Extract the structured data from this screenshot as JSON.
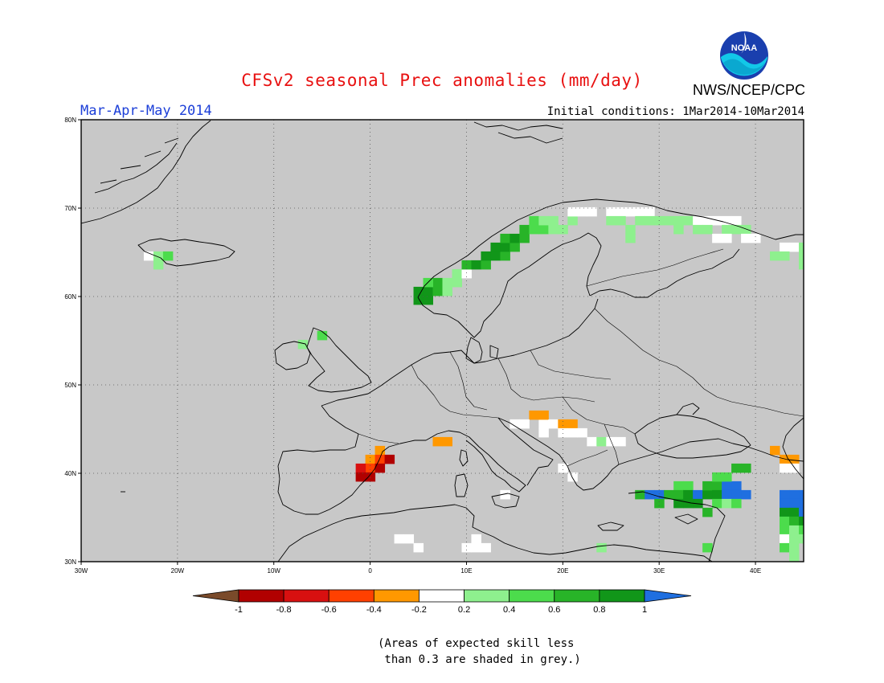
{
  "title": "CFSv2 seasonal Prec anomalies (mm/day)",
  "organization": "NWS/NCEP/CPC",
  "logo_text": "NOAA",
  "season": "Mar-Apr-May 2014",
  "initial_conditions": "Initial conditions: 1Mar2014-10Mar2014",
  "note_line1": "(Areas of expected skill less",
  "note_line2": " than 0.3 are shaded in grey.)",
  "map": {
    "lon_range": [
      -30,
      45
    ],
    "lat_range": [
      30,
      80
    ],
    "grey_mask_color": "#c8c8c8",
    "lat_labels": [
      "80N",
      "70N",
      "60N",
      "50N",
      "40N",
      "30N"
    ],
    "lon_labels": [
      "30W",
      "20W",
      "10W",
      "0",
      "10E",
      "20E",
      "30E",
      "40E"
    ]
  },
  "legend": {
    "labels": [
      "-1",
      "-0.8",
      "-0.6",
      "-0.4",
      "-0.2",
      "0.2",
      "0.4",
      "0.6",
      "0.8",
      "1"
    ],
    "colors": [
      "#7a4a2a",
      "#b10000",
      "#d81010",
      "#ff4000",
      "#ff9800",
      "#ffffff",
      "#8ef08e",
      "#4cdc4c",
      "#28b428",
      "#119619",
      "#1f6fe0"
    ]
  },
  "chart_data": {
    "type": "heatmap",
    "variable": "Precipitation anomaly",
    "units": "mm/day",
    "levels": [
      -1,
      -0.8,
      -0.6,
      -0.4,
      -0.2,
      0.2,
      0.4,
      0.6,
      0.8,
      1
    ],
    "regions": [
      {
        "area": "Norway west coast",
        "value_range": [
          0.6,
          1.0
        ]
      },
      {
        "area": "Northern Scandinavia",
        "value_range": [
          0.2,
          0.6
        ]
      },
      {
        "area": "Kola / NW Russia",
        "value_range": [
          -0.2,
          0.4
        ]
      },
      {
        "area": "Iceland",
        "value_range": [
          0.2,
          0.4
        ]
      },
      {
        "area": "Ireland / Scotland",
        "value_range": [
          0.2,
          0.6
        ]
      },
      {
        "area": "NE Spain",
        "value_range": [
          -1.0,
          -0.4
        ]
      },
      {
        "area": "Balkans",
        "value_range": [
          -0.4,
          -0.2
        ]
      },
      {
        "area": "Turkey / E Mediterranean",
        "value_range": [
          0.4,
          1.0
        ]
      },
      {
        "area": "Caucasus / Caspian",
        "value_range": [
          0.2,
          1.0
        ]
      }
    ]
  },
  "cells": [
    {
      "lon": -23,
      "lat": 64.6,
      "v": -0.1
    },
    {
      "lon": -22,
      "lat": 64.6,
      "v": 0.3
    },
    {
      "lon": -21,
      "lat": 64.6,
      "v": 0.5
    },
    {
      "lon": -22,
      "lat": 63.6,
      "v": 0.3
    },
    {
      "lon": -7,
      "lat": 54.6,
      "v": 0.3
    },
    {
      "lon": -5,
      "lat": 55.6,
      "v": 0.5
    },
    {
      "lon": 5,
      "lat": 60.6,
      "v": 0.9
    },
    {
      "lon": 6,
      "lat": 60.6,
      "v": 0.9
    },
    {
      "lon": 5,
      "lat": 59.6,
      "v": 0.9
    },
    {
      "lon": 6,
      "lat": 59.6,
      "v": 0.9
    },
    {
      "lon": 7,
      "lat": 60.6,
      "v": 0.7
    },
    {
      "lon": 7,
      "lat": 61.6,
      "v": 0.7
    },
    {
      "lon": 6,
      "lat": 61.6,
      "v": 0.5
    },
    {
      "lon": 8,
      "lat": 61.6,
      "v": 0.3
    },
    {
      "lon": 8,
      "lat": 60.6,
      "v": 0.3
    },
    {
      "lon": 9,
      "lat": 61.6,
      "v": 0.3
    },
    {
      "lon": 9,
      "lat": 62.6,
      "v": 0.3
    },
    {
      "lon": 10,
      "lat": 62.6,
      "v": -0.1
    },
    {
      "lon": 10,
      "lat": 63.6,
      "v": 0.7
    },
    {
      "lon": 11,
      "lat": 63.6,
      "v": 0.9
    },
    {
      "lon": 12,
      "lat": 63.6,
      "v": 0.7
    },
    {
      "lon": 12,
      "lat": 64.6,
      "v": 0.9
    },
    {
      "lon": 13,
      "lat": 64.6,
      "v": 0.9
    },
    {
      "lon": 14,
      "lat": 64.6,
      "v": 0.7
    },
    {
      "lon": 13,
      "lat": 65.6,
      "v": 0.9
    },
    {
      "lon": 14,
      "lat": 65.6,
      "v": 0.9
    },
    {
      "lon": 15,
      "lat": 65.6,
      "v": 0.7
    },
    {
      "lon": 14,
      "lat": 66.6,
      "v": 0.7
    },
    {
      "lon": 15,
      "lat": 66.6,
      "v": 0.9
    },
    {
      "lon": 16,
      "lat": 66.6,
      "v": 0.7
    },
    {
      "lon": 16,
      "lat": 67.6,
      "v": 0.7
    },
    {
      "lon": 17,
      "lat": 67.6,
      "v": 0.5
    },
    {
      "lon": 18,
      "lat": 67.6,
      "v": 0.5
    },
    {
      "lon": 19,
      "lat": 67.6,
      "v": 0.3
    },
    {
      "lon": 20,
      "lat": 67.6,
      "v": 0.3
    },
    {
      "lon": 17,
      "lat": 68.6,
      "v": 0.5
    },
    {
      "lon": 18,
      "lat": 68.6,
      "v": 0.3
    },
    {
      "lon": 19,
      "lat": 68.6,
      "v": 0.3
    },
    {
      "lon": 21,
      "lat": 68.6,
      "v": 0.3
    },
    {
      "lon": 21,
      "lat": 69.6,
      "v": -0.1
    },
    {
      "lon": 22,
      "lat": 69.6,
      "v": -0.1
    },
    {
      "lon": 23,
      "lat": 69.6,
      "v": -0.1
    },
    {
      "lon": 25,
      "lat": 69.6,
      "v": -0.1
    },
    {
      "lon": 26,
      "lat": 69.6,
      "v": -0.1
    },
    {
      "lon": 27,
      "lat": 69.6,
      "v": -0.1
    },
    {
      "lon": 28,
      "lat": 69.6,
      "v": -0.1
    },
    {
      "lon": 29,
      "lat": 69.6,
      "v": -0.1
    },
    {
      "lon": 25,
      "lat": 68.6,
      "v": 0.3
    },
    {
      "lon": 26,
      "lat": 68.6,
      "v": 0.3
    },
    {
      "lon": 28,
      "lat": 68.6,
      "v": 0.3
    },
    {
      "lon": 29,
      "lat": 68.6,
      "v": 0.3
    },
    {
      "lon": 30,
      "lat": 68.6,
      "v": 0.3
    },
    {
      "lon": 27,
      "lat": 66.6,
      "v": 0.3
    },
    {
      "lon": 27,
      "lat": 67.6,
      "v": 0.3
    },
    {
      "lon": 31,
      "lat": 68.6,
      "v": 0.3
    },
    {
      "lon": 32,
      "lat": 68.6,
      "v": 0.3
    },
    {
      "lon": 33,
      "lat": 68.6,
      "v": 0.3
    },
    {
      "lon": 32,
      "lat": 67.6,
      "v": 0.3
    },
    {
      "lon": 34,
      "lat": 68.6,
      "v": -0.1
    },
    {
      "lon": 35,
      "lat": 68.6,
      "v": -0.1
    },
    {
      "lon": 36,
      "lat": 68.6,
      "v": -0.1
    },
    {
      "lon": 37,
      "lat": 68.6,
      "v": -0.1
    },
    {
      "lon": 38,
      "lat": 68.6,
      "v": -0.1
    },
    {
      "lon": 34,
      "lat": 67.6,
      "v": 0.3
    },
    {
      "lon": 35,
      "lat": 67.6,
      "v": 0.3
    },
    {
      "lon": 37,
      "lat": 67.6,
      "v": 0.3
    },
    {
      "lon": 38,
      "lat": 67.6,
      "v": 0.3
    },
    {
      "lon": 39,
      "lat": 67.6,
      "v": 0.3
    },
    {
      "lon": 36,
      "lat": 66.6,
      "v": -0.1
    },
    {
      "lon": 37,
      "lat": 66.6,
      "v": -0.1
    },
    {
      "lon": 39,
      "lat": 66.6,
      "v": -0.1
    },
    {
      "lon": 40,
      "lat": 66.6,
      "v": -0.1
    },
    {
      "lon": 43,
      "lat": 65.6,
      "v": -0.1
    },
    {
      "lon": 44,
      "lat": 65.6,
      "v": -0.1
    },
    {
      "lon": 45,
      "lat": 65.6,
      "v": 0.3
    },
    {
      "lon": 42,
      "lat": 64.6,
      "v": 0.3
    },
    {
      "lon": 43,
      "lat": 64.6,
      "v": 0.3
    },
    {
      "lon": 45,
      "lat": 64.6,
      "v": 0.3
    },
    {
      "lon": 45,
      "lat": 63.6,
      "v": 0.3
    },
    {
      "lon": 18,
      "lat": 45.6,
      "v": -0.1
    },
    {
      "lon": 18,
      "lat": 44.6,
      "v": -0.1
    },
    {
      "lon": 17,
      "lat": 46.6,
      "v": -0.3
    },
    {
      "lon": 18,
      "lat": 46.6,
      "v": -0.3
    },
    {
      "lon": 19,
      "lat": 45.6,
      "v": -0.1
    },
    {
      "lon": 20,
      "lat": 45.6,
      "v": -0.3
    },
    {
      "lon": 21,
      "lat": 45.6,
      "v": -0.3
    },
    {
      "lon": 20,
      "lat": 44.6,
      "v": -0.1
    },
    {
      "lon": 21,
      "lat": 44.6,
      "v": -0.1
    },
    {
      "lon": 22,
      "lat": 44.6,
      "v": -0.1
    },
    {
      "lon": 23,
      "lat": 43.6,
      "v": -0.1
    },
    {
      "lon": 24,
      "lat": 43.6,
      "v": 0.3
    },
    {
      "lon": 25,
      "lat": 43.6,
      "v": -0.1
    },
    {
      "lon": 26,
      "lat": 43.6,
      "v": -0.1
    },
    {
      "lon": 15,
      "lat": 45.6,
      "v": -0.1
    },
    {
      "lon": 16,
      "lat": 45.6,
      "v": -0.1
    },
    {
      "lon": 7,
      "lat": 43.6,
      "v": -0.3
    },
    {
      "lon": 8,
      "lat": 43.6,
      "v": -0.3
    },
    {
      "lon": 1,
      "lat": 42.6,
      "v": -0.3
    },
    {
      "lon": 0,
      "lat": 41.6,
      "v": -0.3
    },
    {
      "lon": 1,
      "lat": 41.6,
      "v": -0.5
    },
    {
      "lon": 2,
      "lat": 41.6,
      "v": -0.9
    },
    {
      "lon": 0,
      "lat": 40.6,
      "v": -0.5
    },
    {
      "lon": -1,
      "lat": 40.6,
      "v": -0.7
    },
    {
      "lon": 0,
      "lat": 39.6,
      "v": -0.9
    },
    {
      "lon": -1,
      "lat": 39.6,
      "v": -0.9
    },
    {
      "lon": 1,
      "lat": 40.6,
      "v": -0.9
    },
    {
      "lon": 20,
      "lat": 40.6,
      "v": -0.1
    },
    {
      "lon": 21,
      "lat": 39.6,
      "v": -0.1
    },
    {
      "lon": 14,
      "lat": 37.6,
      "v": -0.1
    },
    {
      "lon": 3,
      "lat": 32.6,
      "v": -0.1
    },
    {
      "lon": 4,
      "lat": 32.6,
      "v": -0.1
    },
    {
      "lon": 5,
      "lat": 31.6,
      "v": -0.1
    },
    {
      "lon": 10,
      "lat": 31.6,
      "v": -0.1
    },
    {
      "lon": 11,
      "lat": 31.6,
      "v": -0.1
    },
    {
      "lon": 11,
      "lat": 32.6,
      "v": -0.1
    },
    {
      "lon": 12,
      "lat": 31.6,
      "v": -0.1
    },
    {
      "lon": 24,
      "lat": 31.6,
      "v": 0.3
    },
    {
      "lon": 28,
      "lat": 37.6,
      "v": 0.7
    },
    {
      "lon": 29,
      "lat": 37.6,
      "v": 1.1
    },
    {
      "lon": 30,
      "lat": 37.6,
      "v": 1.1
    },
    {
      "lon": 31,
      "lat": 37.6,
      "v": 0.7
    },
    {
      "lon": 30,
      "lat": 36.6,
      "v": 0.7
    },
    {
      "lon": 32,
      "lat": 38.6,
      "v": 0.5
    },
    {
      "lon": 33,
      "lat": 38.6,
      "v": 0.5
    },
    {
      "lon": 32,
      "lat": 37.6,
      "v": 0.7
    },
    {
      "lon": 33,
      "lat": 37.6,
      "v": 0.9
    },
    {
      "lon": 33,
      "lat": 36.6,
      "v": 0.9
    },
    {
      "lon": 32,
      "lat": 36.6,
      "v": 0.9
    },
    {
      "lon": 34,
      "lat": 37.6,
      "v": 1.1
    },
    {
      "lon": 35,
      "lat": 37.6,
      "v": 0.9
    },
    {
      "lon": 34,
      "lat": 36.6,
      "v": 0.9
    },
    {
      "lon": 35,
      "lat": 38.6,
      "v": 0.7
    },
    {
      "lon": 36,
      "lat": 38.6,
      "v": 0.7
    },
    {
      "lon": 37,
      "lat": 38.6,
      "v": 1.1
    },
    {
      "lon": 38,
      "lat": 38.6,
      "v": 1.1
    },
    {
      "lon": 36,
      "lat": 39.6,
      "v": 0.5
    },
    {
      "lon": 37,
      "lat": 39.6,
      "v": 0.5
    },
    {
      "lon": 38,
      "lat": 40.6,
      "v": 0.7
    },
    {
      "lon": 39,
      "lat": 40.6,
      "v": 0.7
    },
    {
      "lon": 36,
      "lat": 37.6,
      "v": 0.9
    },
    {
      "lon": 37,
      "lat": 37.6,
      "v": 1.1
    },
    {
      "lon": 38,
      "lat": 37.6,
      "v": 1.1
    },
    {
      "lon": 39,
      "lat": 37.6,
      "v": 1.1
    },
    {
      "lon": 36,
      "lat": 36.6,
      "v": 0.5
    },
    {
      "lon": 37,
      "lat": 36.6,
      "v": 0.3
    },
    {
      "lon": 38,
      "lat": 36.6,
      "v": 0.5
    },
    {
      "lon": 35,
      "lat": 35.6,
      "v": 0.7
    },
    {
      "lon": 35,
      "lat": 31.6,
      "v": 0.5
    },
    {
      "lon": 42,
      "lat": 42.6,
      "v": -0.3
    },
    {
      "lon": 43,
      "lat": 41.6,
      "v": -0.3
    },
    {
      "lon": 44,
      "lat": 41.6,
      "v": -0.3
    },
    {
      "lon": 43,
      "lat": 40.6,
      "v": -0.1
    },
    {
      "lon": 44,
      "lat": 40.6,
      "v": -0.1
    },
    {
      "lon": 43,
      "lat": 37.6,
      "v": 1.1
    },
    {
      "lon": 44,
      "lat": 37.6,
      "v": 1.1
    },
    {
      "lon": 45,
      "lat": 37.6,
      "v": 1.1
    },
    {
      "lon": 43,
      "lat": 36.6,
      "v": 1.1
    },
    {
      "lon": 44,
      "lat": 36.6,
      "v": 1.1
    },
    {
      "lon": 45,
      "lat": 36.6,
      "v": 1.1
    },
    {
      "lon": 43,
      "lat": 35.6,
      "v": 0.9
    },
    {
      "lon": 44,
      "lat": 35.6,
      "v": 0.9
    },
    {
      "lon": 45,
      "lat": 35.6,
      "v": 1.1
    },
    {
      "lon": 43,
      "lat": 34.6,
      "v": 0.5
    },
    {
      "lon": 44,
      "lat": 34.6,
      "v": 0.7
    },
    {
      "lon": 45,
      "lat": 34.6,
      "v": 0.9
    },
    {
      "lon": 43,
      "lat": 33.6,
      "v": 0.5
    },
    {
      "lon": 44,
      "lat": 33.6,
      "v": 0.3
    },
    {
      "lon": 45,
      "lat": 33.6,
      "v": 0.5
    },
    {
      "lon": 43,
      "lat": 32.6,
      "v": -0.1
    },
    {
      "lon": 44,
      "lat": 32.6,
      "v": 0.3
    },
    {
      "lon": 45,
      "lat": 32.6,
      "v": 0.3
    },
    {
      "lon": 43,
      "lat": 31.6,
      "v": 0.5
    },
    {
      "lon": 44,
      "lat": 31.6,
      "v": 0.3
    },
    {
      "lon": 44,
      "lat": 30.6,
      "v": 0.3
    }
  ]
}
